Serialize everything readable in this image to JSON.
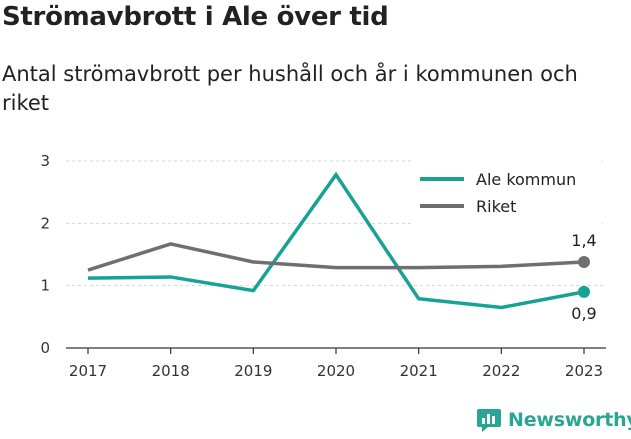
{
  "title": "Strömavbrott i Ale över tid",
  "subtitle": "Antal strömavbrott per hushåll och år i kommunen och riket",
  "brand": "Newsworthy",
  "chart_data": {
    "type": "line",
    "x": [
      "2017",
      "2018",
      "2019",
      "2020",
      "2021",
      "2022",
      "2023"
    ],
    "ylim": [
      0,
      3
    ],
    "yticks": [
      "0",
      "1",
      "2",
      "3"
    ],
    "grid": true,
    "legend_position": "top-right",
    "series": [
      {
        "name": "Ale kommun",
        "color": "#16a295",
        "values": [
          1.12,
          1.14,
          0.92,
          2.78,
          0.79,
          0.65,
          0.9
        ],
        "end_label": "0,9"
      },
      {
        "name": "Riket",
        "color": "#6e6e73",
        "values": [
          1.25,
          1.67,
          1.38,
          1.29,
          1.29,
          1.31,
          1.38
        ],
        "end_label": "1,4"
      }
    ]
  }
}
